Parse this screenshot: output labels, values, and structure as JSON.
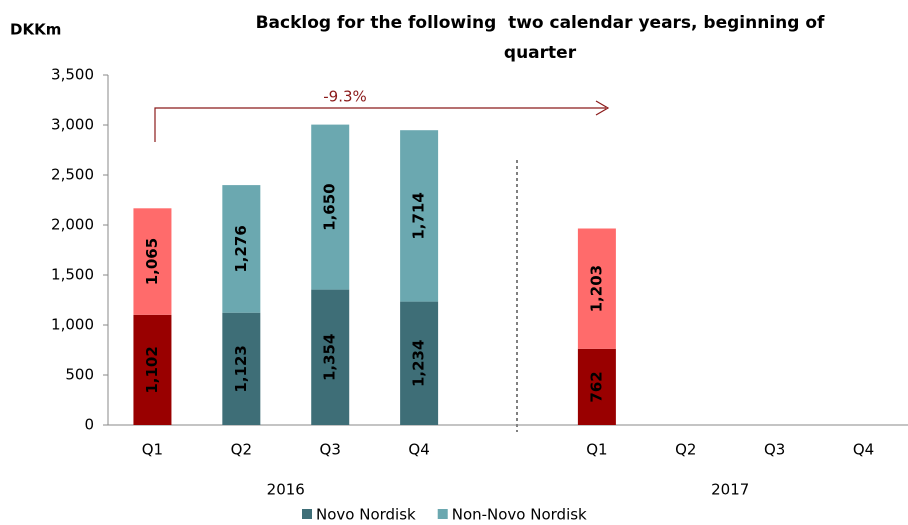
{
  "chart_data": {
    "type": "stacked_bar",
    "title": "Backlog for the following  two calendar years, beginning of quarter",
    "y_axis_label": "DKKm",
    "annotation": "-9.3%",
    "categories": [
      "Q1",
      "Q2",
      "Q3",
      "Q4",
      null,
      "Q1",
      "Q2",
      "Q3",
      "Q4"
    ],
    "group_labels": [
      "2016",
      "2017"
    ],
    "series": [
      {
        "name": "Novo Nordisk",
        "color": "#3e6e77",
        "colors": [
          "#990000",
          "#3e6e77",
          "#3e6e77",
          "#3e6e77",
          null,
          "#990000",
          null,
          null,
          null
        ],
        "values": [
          1102,
          1123,
          1354,
          1234,
          null,
          762,
          null,
          null,
          null
        ],
        "value_labels": [
          "1,102",
          "1,123",
          "1,354",
          "1,234",
          null,
          "762",
          null,
          null,
          null
        ]
      },
      {
        "name": "Non-Novo Nordisk",
        "color": "#6ba8b0",
        "colors": [
          "#ff6b6b",
          "#6ba8b0",
          "#6ba8b0",
          "#6ba8b0",
          null,
          "#ff6b6b",
          null,
          null,
          null
        ],
        "values": [
          1065,
          1276,
          1650,
          1714,
          null,
          1203,
          null,
          null,
          null
        ],
        "value_labels": [
          "1,065",
          "1,276",
          "1,650",
          "1,714",
          null,
          "1,203",
          null,
          null,
          null
        ]
      }
    ],
    "ylim": [
      0,
      3500
    ],
    "yticks": [
      0,
      500,
      {
        "value": 1000,
        "label": "1,000"
      },
      {
        "value": 1500,
        "label": "1,500"
      },
      {
        "value": 2000,
        "label": "2,000"
      },
      {
        "value": 2500,
        "label": "2,500"
      },
      {
        "value": 3000,
        "label": "3,000"
      },
      {
        "value": 3500,
        "label": "3,500"
      }
    ],
    "grid": false,
    "legend": "bottom"
  }
}
